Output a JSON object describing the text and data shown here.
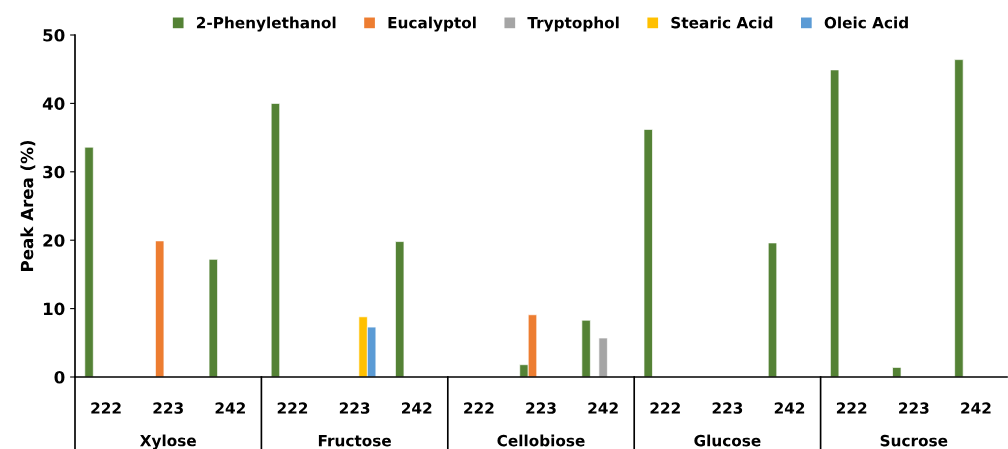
{
  "chart_data": {
    "type": "bar",
    "ylabel": "Peak Area (%)",
    "categories": [
      "222",
      "223",
      "242",
      "222",
      "223",
      "242",
      "222",
      "223",
      "242",
      "222",
      "223",
      "242",
      "222",
      "223",
      "242"
    ],
    "series": [
      {
        "name": "2-Phenylethanol",
        "color": "#548235",
        "values": [
          33.6,
          null,
          17.2,
          40.0,
          null,
          19.8,
          null,
          1.8,
          8.3,
          36.2,
          null,
          19.6,
          44.9,
          1.4,
          46.4
        ]
      },
      {
        "name": "Eucalyptol",
        "color": "#ed7d31",
        "values": [
          null,
          19.9,
          null,
          null,
          null,
          null,
          null,
          9.1,
          null,
          null,
          null,
          null,
          null,
          null,
          null
        ]
      },
      {
        "name": "Tryptophol",
        "color": "#a5a5a5",
        "values": [
          null,
          null,
          null,
          null,
          null,
          null,
          null,
          null,
          5.7,
          null,
          null,
          null,
          null,
          null,
          null
        ]
      },
      {
        "name": "Stearic Acid",
        "color": "#ffc000",
        "values": [
          null,
          null,
          null,
          null,
          8.8,
          null,
          null,
          null,
          null,
          null,
          null,
          null,
          null,
          null,
          null
        ]
      },
      {
        "name": "Oleic Acid",
        "color": "#5b9bd5",
        "values": [
          null,
          null,
          null,
          null,
          7.3,
          null,
          null,
          null,
          null,
          null,
          null,
          null,
          null,
          null,
          null
        ]
      }
    ],
    "annotations": [
      "Xylose",
      "Fructose",
      "Cellobiose",
      "Glucose",
      "Sucrose"
    ],
    "ylim": [
      0,
      50
    ],
    "yticks": [
      0,
      10,
      20,
      30,
      40,
      50
    ],
    "grid": false,
    "legend": "top"
  }
}
